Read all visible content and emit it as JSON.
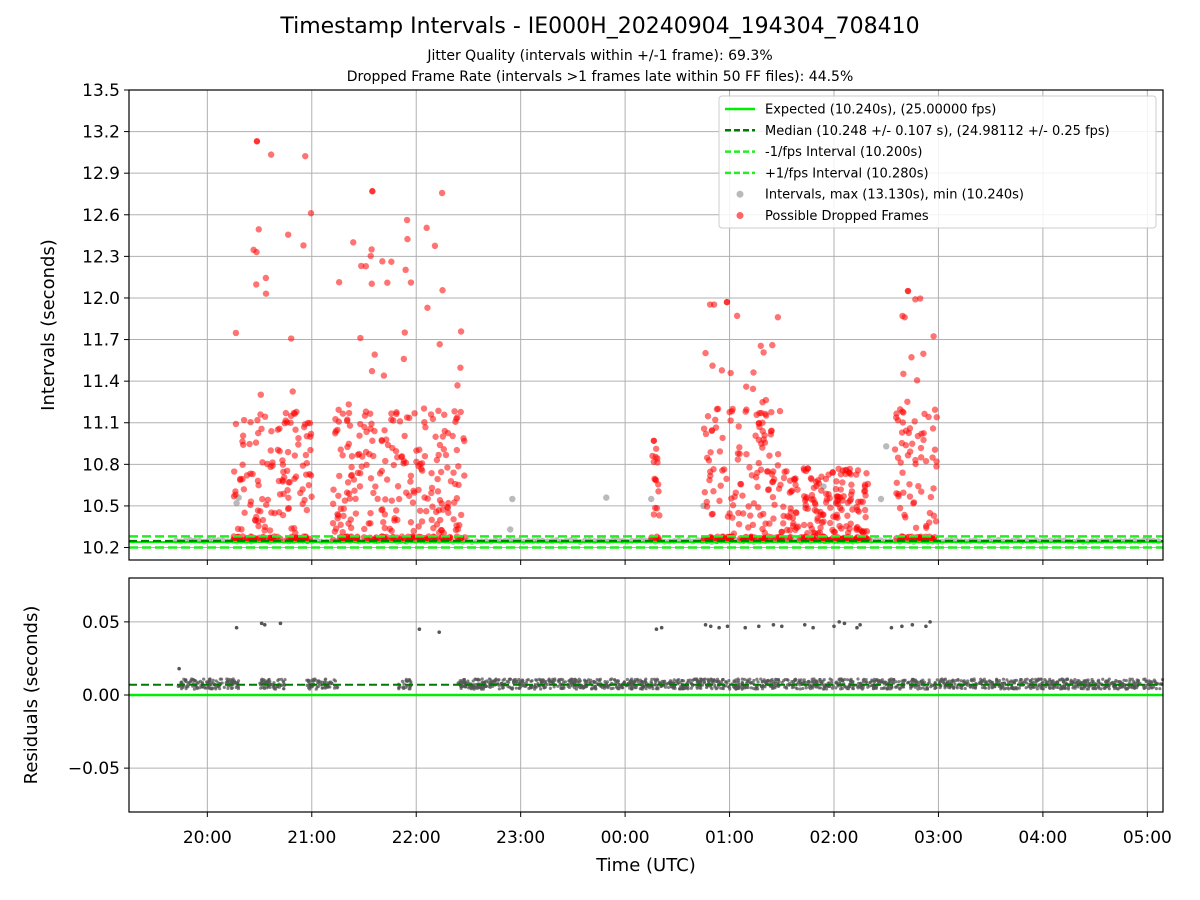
{
  "title": "Timestamp Intervals - IE000H_20240904_194304_708410",
  "subtitle_1": "Jitter Quality (intervals within +/-1 frame): 69.3%",
  "subtitle_2": "Dropped Frame Rate (intervals >1 frames late within 50 FF files): 44.5%",
  "colors": {
    "expected": "#00ee00",
    "median": "#007a00",
    "fps_bounds": "#22ee22",
    "intervals": "#8c8c8c",
    "dropped": "#ff0000",
    "residuals": "#555555"
  },
  "chart_data": [
    {
      "type": "scatter",
      "panel": "top",
      "ylabel": "Intervals (seconds)",
      "ylim": [
        10.11,
        13.5
      ],
      "xlim_hours": [
        19.25,
        29.15
      ],
      "yticks": [
        "10.2",
        "10.5",
        "10.8",
        "11.1",
        "11.4",
        "11.7",
        "12.0",
        "12.3",
        "12.6",
        "12.9",
        "13.2",
        "13.5"
      ],
      "grid": true,
      "legend_placement": "top-right",
      "legend": [
        "Expected (10.240s), (25.00000 fps)",
        "Median (10.248 +/- 0.107 s), (24.98112 +/- 0.25 fps)",
        "-1/fps Interval (10.200s)",
        "+1/fps Interval (10.280s)",
        "Intervals, max (13.130s), min (10.240s)",
        "Possible Dropped Frames"
      ],
      "reference_lines": {
        "expected": 10.24,
        "median": 10.248,
        "minus_1_fps": 10.2,
        "plus_1_fps": 10.28
      },
      "intervals_max": 13.13,
      "intervals_min": 10.24,
      "dropped_frame_clusters": [
        {
          "start": "20:15",
          "end": "21:00",
          "max": 13.13
        },
        {
          "start": "21:12",
          "end": "22:28",
          "max": 12.77
        },
        {
          "start": "00:15",
          "end": "00:20",
          "max": 10.97
        },
        {
          "start": "00:45",
          "end": "01:30",
          "max": 11.97
        },
        {
          "start": "01:30",
          "end": "02:20",
          "max": 10.77
        },
        {
          "start": "02:35",
          "end": "03:00",
          "max": 12.05
        }
      ]
    },
    {
      "type": "scatter",
      "panel": "bottom",
      "ylabel": "Residuals (seconds)",
      "ylim": [
        -0.08,
        0.08
      ],
      "yticks": [
        "−0.05",
        "0.00",
        "0.05"
      ],
      "reference_lines": {
        "zero": 0.0,
        "median_residual": 0.007
      },
      "xlabel": "Time (UTC)",
      "xticks": [
        "20:00",
        "21:00",
        "22:00",
        "23:00",
        "00:00",
        "01:00",
        "02:00",
        "03:00",
        "04:00",
        "05:00"
      ],
      "xtick_hours": [
        20,
        21,
        22,
        23,
        24,
        25,
        26,
        27,
        28,
        29
      ],
      "outliers_near": 0.047
    }
  ]
}
